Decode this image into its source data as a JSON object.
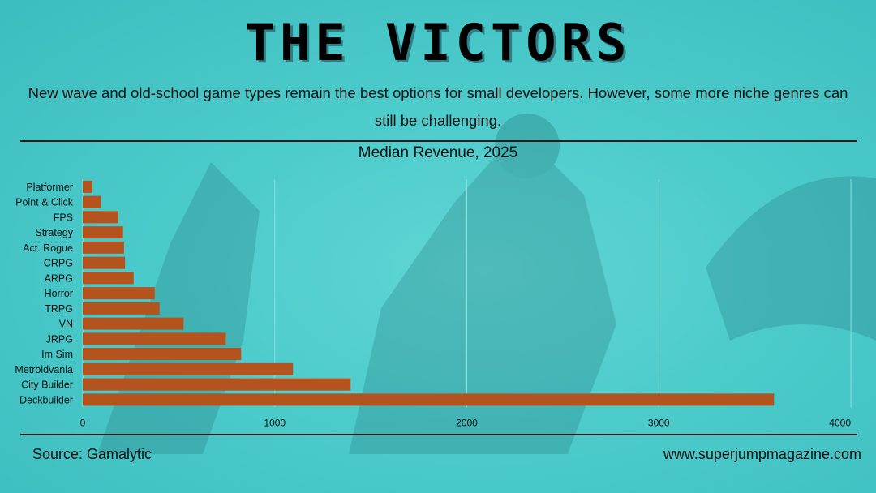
{
  "header": {
    "title": "THE VICTORS",
    "subtitle": "New wave and old-school game types remain the best options for small developers. However, some more niche genres can still be challenging."
  },
  "footer": {
    "source": "Source: Gamalytic",
    "website": "www.superjumpmagazine.com"
  },
  "colors": {
    "bar": "#b5531f",
    "background": "#4ccbcb",
    "grid": "#8fdcdc"
  },
  "chart_data": {
    "type": "bar",
    "orientation": "horizontal",
    "title": "Median Revenue, 2025",
    "xlabel": "",
    "ylabel": "",
    "categories": [
      "Platformer",
      "Point & Click",
      "FPS",
      "Strategy",
      "Act. Rogue",
      "CRPG",
      "ARPG",
      "Horror",
      "TRPG",
      "VN",
      "JRPG",
      "Im Sim",
      "Metroidvania",
      "City Builder",
      "Deckbuilder"
    ],
    "values": [
      50,
      95,
      185,
      210,
      215,
      220,
      265,
      375,
      400,
      525,
      745,
      825,
      1095,
      1395,
      3600
    ],
    "xlim": [
      0,
      4000
    ],
    "xticks": [
      0,
      1000,
      2000,
      3000,
      4000
    ],
    "grid": "vertical",
    "legend": "none"
  }
}
